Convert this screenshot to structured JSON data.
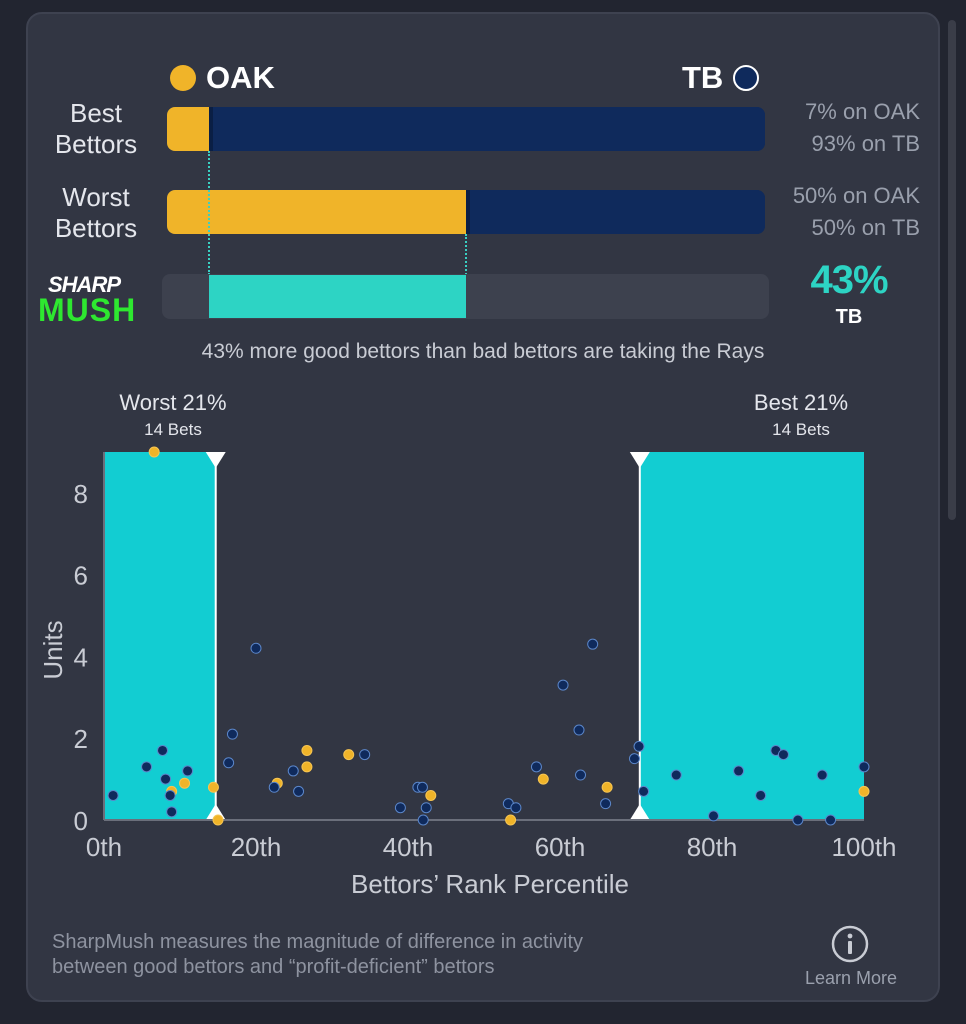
{
  "teams": {
    "left": {
      "name": "OAK",
      "color": "#f0b429"
    },
    "right": {
      "name": "TB",
      "color": "#0f2a5c"
    }
  },
  "rows": [
    {
      "label_line1": "Best",
      "label_line2": "Bettors",
      "oak_pct": 7,
      "tb_pct": 93,
      "text_line1": "7% on OAK",
      "text_line2": "93% on TB"
    },
    {
      "label_line1": "Worst",
      "label_line2": "Bettors",
      "oak_pct": 50,
      "tb_pct": 50,
      "text_line1": "50% on OAK",
      "text_line2": "50% on TB"
    }
  ],
  "sharpmush": {
    "logo_top": "SHARP",
    "logo_bottom": "MUSH",
    "diff_value": "43%",
    "diff_team": "TB",
    "summary": "43% more good bettors than bad bettors are taking the Rays",
    "accent": "#2dd4c4"
  },
  "chart_data": {
    "type": "scatter",
    "xlabel": "Bettors’ Rank Percentile",
    "ylabel": "Units",
    "xlim": [
      0,
      100
    ],
    "ylim": [
      0,
      9
    ],
    "xticks": [
      0,
      20,
      40,
      60,
      80,
      100
    ],
    "xtick_labels": [
      "0th",
      "20th",
      "40th",
      "60th",
      "80th",
      "100th"
    ],
    "yticks": [
      0,
      2,
      4,
      6,
      8
    ],
    "ytick_labels": [
      "0",
      "2",
      "4",
      "6",
      "8"
    ],
    "highlight_regions": [
      {
        "name": "Worst 21%",
        "sub": "14 Bets",
        "x0": 0,
        "x1": 14.7
      },
      {
        "name": "Best 21%",
        "sub": "14 Bets",
        "x0": 70.5,
        "x1": 100
      }
    ],
    "series": [
      {
        "name": "OAK",
        "color": "#f0b429",
        "points": [
          [
            6.6,
            9.0
          ],
          [
            8.9,
            0.7
          ],
          [
            10.6,
            0.9
          ],
          [
            14.4,
            0.8
          ],
          [
            15.0,
            0.0
          ],
          [
            22.8,
            0.9
          ],
          [
            26.7,
            1.7
          ],
          [
            26.7,
            1.3
          ],
          [
            32.2,
            1.6
          ],
          [
            43.0,
            0.6
          ],
          [
            53.5,
            0.0
          ],
          [
            57.8,
            1.0
          ],
          [
            66.2,
            0.8
          ],
          [
            100,
            0.7
          ]
        ]
      },
      {
        "name": "TB",
        "color": "#0f2a5c",
        "points": [
          [
            1.2,
            0.6
          ],
          [
            5.6,
            1.3
          ],
          [
            7.7,
            1.7
          ],
          [
            8.1,
            1.0
          ],
          [
            8.7,
            0.6
          ],
          [
            8.9,
            0.2
          ],
          [
            11.0,
            1.2
          ],
          [
            16.4,
            1.4
          ],
          [
            16.9,
            2.1
          ],
          [
            20.0,
            4.2
          ],
          [
            22.4,
            0.8
          ],
          [
            24.9,
            1.2
          ],
          [
            25.6,
            0.7
          ],
          [
            34.3,
            1.6
          ],
          [
            39.0,
            0.3
          ],
          [
            41.3,
            0.8
          ],
          [
            41.9,
            0.8
          ],
          [
            42.0,
            0.0
          ],
          [
            42.4,
            0.3
          ],
          [
            53.2,
            0.4
          ],
          [
            54.2,
            0.3
          ],
          [
            56.9,
            1.3
          ],
          [
            60.4,
            3.3
          ],
          [
            62.5,
            2.2
          ],
          [
            62.7,
            1.1
          ],
          [
            64.3,
            4.3
          ],
          [
            66.0,
            0.4
          ],
          [
            69.8,
            1.5
          ],
          [
            70.4,
            1.8
          ],
          [
            71.0,
            0.7
          ],
          [
            75.3,
            1.1
          ],
          [
            80.2,
            0.1
          ],
          [
            83.5,
            1.2
          ],
          [
            86.4,
            0.6
          ],
          [
            88.4,
            1.7
          ],
          [
            89.4,
            1.6
          ],
          [
            91.3,
            0.0
          ],
          [
            94.5,
            1.1
          ],
          [
            95.6,
            0.0
          ],
          [
            100,
            1.3
          ]
        ]
      }
    ]
  },
  "footer": {
    "text_line1": "SharpMush measures the magnitude of difference in activity",
    "text_line2": "between good bettors and “profit-deficient” bettors",
    "learn_more": "Learn More"
  }
}
